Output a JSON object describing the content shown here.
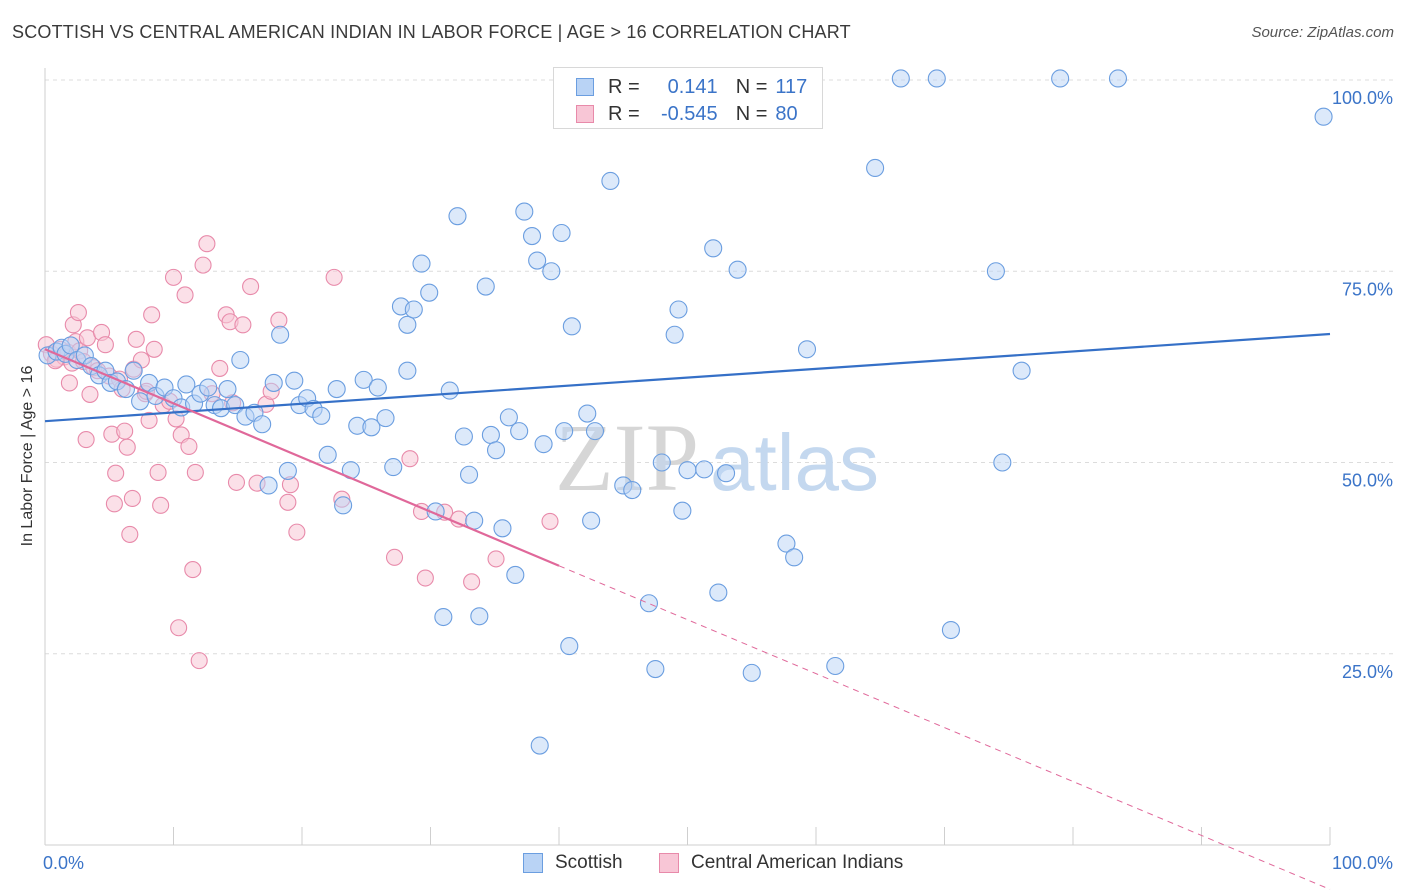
{
  "header": {
    "title": "SCOTTISH VS CENTRAL AMERICAN INDIAN IN LABOR FORCE | AGE > 16 CORRELATION CHART",
    "source": "Source: ZipAtlas.com"
  },
  "watermark": {
    "zip": "ZIP",
    "atlas": "atlas"
  },
  "legend": {
    "rows": [
      {
        "r_label": "R =",
        "r_value": "0.141",
        "n_label": "N =",
        "n_value": "117"
      },
      {
        "r_label": "R =",
        "r_value": "-0.545",
        "n_label": "N =",
        "n_value": "80"
      }
    ]
  },
  "bottom_legend": {
    "scottish": "Scottish",
    "central": "Central American Indians"
  },
  "chart_data": {
    "type": "scatter",
    "title": "SCOTTISH VS CENTRAL AMERICAN INDIAN IN LABOR FORCE | AGE > 16 CORRELATION CHART",
    "xlabel": "",
    "ylabel": "In Labor Force | Age > 16",
    "xlim": [
      0,
      100
    ],
    "ylim": [
      0,
      105
    ],
    "x_tick_labels": [
      "0.0%",
      "100.0%"
    ],
    "y_ticks": [
      25,
      50,
      75,
      100
    ],
    "y_tick_labels": [
      "25.0%",
      "50.0%",
      "75.0%",
      "100.0%"
    ],
    "grid": "horizontal dashed",
    "legend_position": "top-center",
    "colors": {
      "scottish": "#6b9ee0",
      "scottish_fill": "#b9d3f5",
      "scottish_line": "#3570c7",
      "central": "#e88aaa",
      "central_fill": "#f8c6d6",
      "central_line": "#e0689a",
      "tick_label": "#3b74c8"
    },
    "series": [
      {
        "name": "Scottish",
        "r": 0.141,
        "n": 117,
        "trend": {
          "x": [
            0,
            100
          ],
          "y": [
            55.4,
            66.8
          ]
        },
        "points": [
          [
            0.2,
            64
          ],
          [
            0.9,
            64.5
          ],
          [
            1.3,
            65
          ],
          [
            1.6,
            64.2
          ],
          [
            2.0,
            65.3
          ],
          [
            2.5,
            63.4
          ],
          [
            3.1,
            64.0
          ],
          [
            3.6,
            62.6
          ],
          [
            4.2,
            61.4
          ],
          [
            4.7,
            62.0
          ],
          [
            5.1,
            60.4
          ],
          [
            5.6,
            60.6
          ],
          [
            6.3,
            59.6
          ],
          [
            6.9,
            62.0
          ],
          [
            7.4,
            58.0
          ],
          [
            8.1,
            60.4
          ],
          [
            8.6,
            58.7
          ],
          [
            9.3,
            59.8
          ],
          [
            10.0,
            58.4
          ],
          [
            10.6,
            57.2
          ],
          [
            11.0,
            60.2
          ],
          [
            11.6,
            57.7
          ],
          [
            12.1,
            59.0
          ],
          [
            12.7,
            59.8
          ],
          [
            13.2,
            57.5
          ],
          [
            13.7,
            57.1
          ],
          [
            14.2,
            59.6
          ],
          [
            14.8,
            57.5
          ],
          [
            15.2,
            63.4
          ],
          [
            15.6,
            56.0
          ],
          [
            16.3,
            56.5
          ],
          [
            16.9,
            55.0
          ],
          [
            17.4,
            47.0
          ],
          [
            17.8,
            60.4
          ],
          [
            18.3,
            66.7
          ],
          [
            18.9,
            48.9
          ],
          [
            19.4,
            60.7
          ],
          [
            19.8,
            57.5
          ],
          [
            20.4,
            58.4
          ],
          [
            20.9,
            57.0
          ],
          [
            21.5,
            56.1
          ],
          [
            22.0,
            51.0
          ],
          [
            22.7,
            59.6
          ],
          [
            23.2,
            44.4
          ],
          [
            23.8,
            49.0
          ],
          [
            24.3,
            54.8
          ],
          [
            24.8,
            60.8
          ],
          [
            25.4,
            54.6
          ],
          [
            25.9,
            59.8
          ],
          [
            26.5,
            55.8
          ],
          [
            27.1,
            49.4
          ],
          [
            27.7,
            70.4
          ],
          [
            28.2,
            68.0
          ],
          [
            28.7,
            70.0
          ],
          [
            28.2,
            62.0
          ],
          [
            29.3,
            76.0
          ],
          [
            29.9,
            72.2
          ],
          [
            30.4,
            43.6
          ],
          [
            31.0,
            29.8
          ],
          [
            31.5,
            59.4
          ],
          [
            32.1,
            82.2
          ],
          [
            32.6,
            53.4
          ],
          [
            33.0,
            48.4
          ],
          [
            33.4,
            42.4
          ],
          [
            33.8,
            29.9
          ],
          [
            34.3,
            73.0
          ],
          [
            34.7,
            53.6
          ],
          [
            35.1,
            51.6
          ],
          [
            35.6,
            41.4
          ],
          [
            36.1,
            55.9
          ],
          [
            36.6,
            35.3
          ],
          [
            36.9,
            54.1
          ],
          [
            37.3,
            82.8
          ],
          [
            37.9,
            79.6
          ],
          [
            38.3,
            76.4
          ],
          [
            38.5,
            13.0
          ],
          [
            38.8,
            52.4
          ],
          [
            39.4,
            75.0
          ],
          [
            40.2,
            80.0
          ],
          [
            40.4,
            54.1
          ],
          [
            40.8,
            26.0
          ],
          [
            41.0,
            67.8
          ],
          [
            42.2,
            56.4
          ],
          [
            42.5,
            42.4
          ],
          [
            42.8,
            54.1
          ],
          [
            44.0,
            86.8
          ],
          [
            45.0,
            47.0
          ],
          [
            45.7,
            46.4
          ],
          [
            47.0,
            31.6
          ],
          [
            47.5,
            23.0
          ],
          [
            48.0,
            50.0
          ],
          [
            49.0,
            66.7
          ],
          [
            49.3,
            70.0
          ],
          [
            49.6,
            43.7
          ],
          [
            50.0,
            49.0
          ],
          [
            51.3,
            49.1
          ],
          [
            52.0,
            78.0
          ],
          [
            52.4,
            33.0
          ],
          [
            53.0,
            48.6
          ],
          [
            53.9,
            75.2
          ],
          [
            55.0,
            22.5
          ],
          [
            57.7,
            39.4
          ],
          [
            58.3,
            37.6
          ],
          [
            59.3,
            64.8
          ],
          [
            61.5,
            23.4
          ],
          [
            64.6,
            88.5
          ],
          [
            66.6,
            100.2
          ],
          [
            69.4,
            100.2
          ],
          [
            70.5,
            28.1
          ],
          [
            74.0,
            75.0
          ],
          [
            74.5,
            50.0
          ],
          [
            76.0,
            62.0
          ],
          [
            79.0,
            100.2
          ],
          [
            83.5,
            100.2
          ],
          [
            99.5,
            95.2
          ],
          [
            45.5,
            100.2
          ],
          [
            55.7,
            100.2
          ]
        ]
      },
      {
        "name": "Central American Indians",
        "r": -0.545,
        "n": 80,
        "trend": {
          "x": [
            0,
            40
          ],
          "y": [
            64.8,
            36.5
          ]
        },
        "trend_extension": {
          "x": [
            40,
            100
          ],
          "y": [
            36.5,
            -5.8
          ]
        },
        "points": [
          [
            0.1,
            65.4
          ],
          [
            0.5,
            64.2
          ],
          [
            0.9,
            63.5
          ],
          [
            1.2,
            64.8
          ],
          [
            1.5,
            63.8
          ],
          [
            1.8,
            64.4
          ],
          [
            2.1,
            63.0
          ],
          [
            2.4,
            65.8
          ],
          [
            2.7,
            64.6
          ],
          [
            0.8,
            63.3
          ],
          [
            1.9,
            60.4
          ],
          [
            2.2,
            68.0
          ],
          [
            2.6,
            69.6
          ],
          [
            3.0,
            63.2
          ],
          [
            3.3,
            66.3
          ],
          [
            3.5,
            58.9
          ],
          [
            3.2,
            53.0
          ],
          [
            3.8,
            62.4
          ],
          [
            4.1,
            62.0
          ],
          [
            4.4,
            67.0
          ],
          [
            4.7,
            65.4
          ],
          [
            5.0,
            61.3
          ],
          [
            5.2,
            53.7
          ],
          [
            5.4,
            44.6
          ],
          [
            5.5,
            48.6
          ],
          [
            5.8,
            60.9
          ],
          [
            6.0,
            59.6
          ],
          [
            6.2,
            54.1
          ],
          [
            6.4,
            52.0
          ],
          [
            6.6,
            40.6
          ],
          [
            6.8,
            45.3
          ],
          [
            6.9,
            62.2
          ],
          [
            7.1,
            66.1
          ],
          [
            7.5,
            63.4
          ],
          [
            7.8,
            59.0
          ],
          [
            7.9,
            59.3
          ],
          [
            8.1,
            55.5
          ],
          [
            8.3,
            69.3
          ],
          [
            8.5,
            64.8
          ],
          [
            8.8,
            48.7
          ],
          [
            9.0,
            44.4
          ],
          [
            9.2,
            57.5
          ],
          [
            9.7,
            58.0
          ],
          [
            10.0,
            74.2
          ],
          [
            10.2,
            55.7
          ],
          [
            10.4,
            28.4
          ],
          [
            10.6,
            53.6
          ],
          [
            10.9,
            71.9
          ],
          [
            11.2,
            52.1
          ],
          [
            11.5,
            36.0
          ],
          [
            11.7,
            48.7
          ],
          [
            12.0,
            24.1
          ],
          [
            12.3,
            75.8
          ],
          [
            12.6,
            78.6
          ],
          [
            13.0,
            59.0
          ],
          [
            13.6,
            62.3
          ],
          [
            14.1,
            69.3
          ],
          [
            14.4,
            68.4
          ],
          [
            14.6,
            57.8
          ],
          [
            14.9,
            47.4
          ],
          [
            15.4,
            68.0
          ],
          [
            16.0,
            73.0
          ],
          [
            16.5,
            47.3
          ],
          [
            17.2,
            57.6
          ],
          [
            17.6,
            59.3
          ],
          [
            18.2,
            68.6
          ],
          [
            18.9,
            44.8
          ],
          [
            19.1,
            47.1
          ],
          [
            19.6,
            40.9
          ],
          [
            22.5,
            74.2
          ],
          [
            23.1,
            45.2
          ],
          [
            27.2,
            37.6
          ],
          [
            28.4,
            50.5
          ],
          [
            29.3,
            43.6
          ],
          [
            29.6,
            34.9
          ],
          [
            31.1,
            43.5
          ],
          [
            32.2,
            42.6
          ],
          [
            33.2,
            34.4
          ],
          [
            35.1,
            37.4
          ],
          [
            39.3,
            42.3
          ]
        ]
      }
    ]
  }
}
